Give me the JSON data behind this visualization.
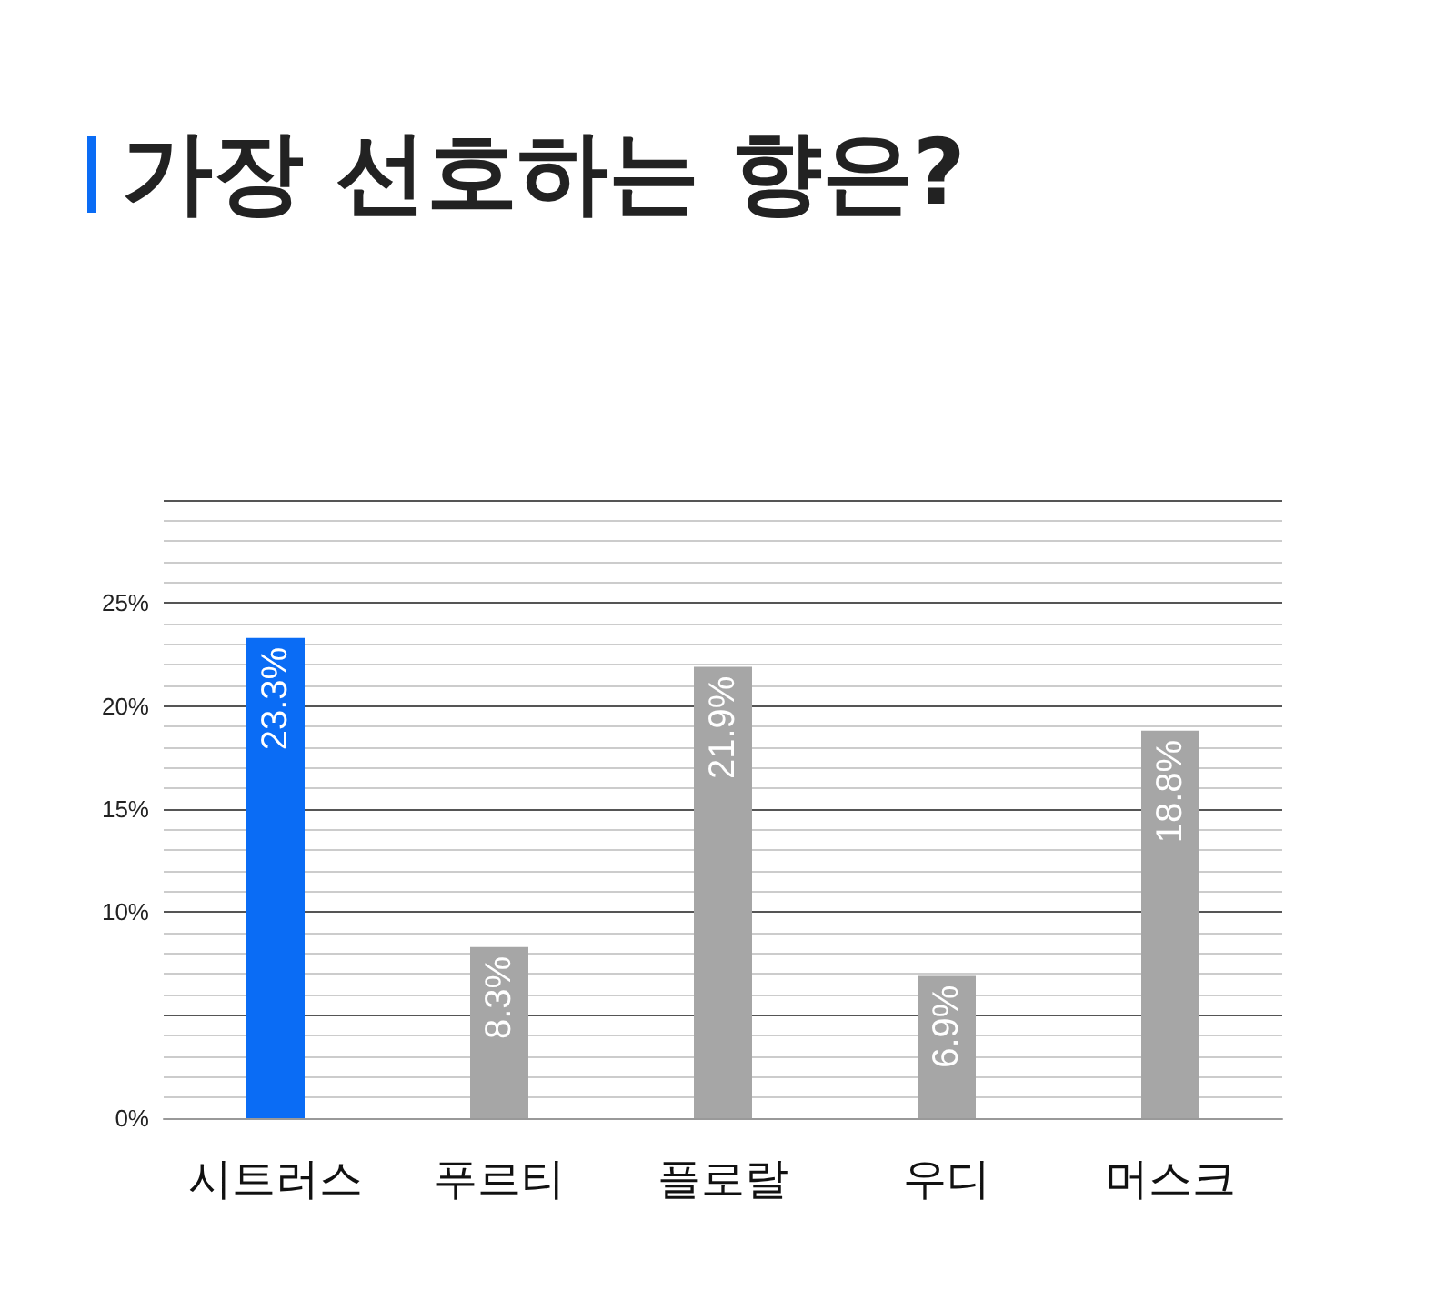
{
  "chart_data": {
    "type": "bar",
    "title": "가장 선호하는 향은?",
    "categories": [
      "시트러스",
      "푸르티",
      "플로랄",
      "우디",
      "머스크"
    ],
    "values": [
      23.3,
      8.3,
      21.9,
      6.9,
      18.8
    ],
    "colors": [
      "#0a6cf5",
      "#a6a6a6",
      "#a6a6a6",
      "#a6a6a6",
      "#a6a6a6"
    ],
    "value_labels": [
      "23.3%",
      "8.3%",
      "21.9%",
      "6.9%",
      "18.8%"
    ],
    "ylim": [
      0,
      30
    ],
    "yticks": [
      {
        "value": 0,
        "label": "0%"
      },
      {
        "value": 5,
        "label": null
      },
      {
        "value": 10,
        "label": "10%"
      },
      {
        "value": 15,
        "label": "15%"
      },
      {
        "value": 20,
        "label": "20%"
      },
      {
        "value": 25,
        "label": "25%"
      },
      {
        "value": 30,
        "label": null
      }
    ],
    "grid": true
  }
}
